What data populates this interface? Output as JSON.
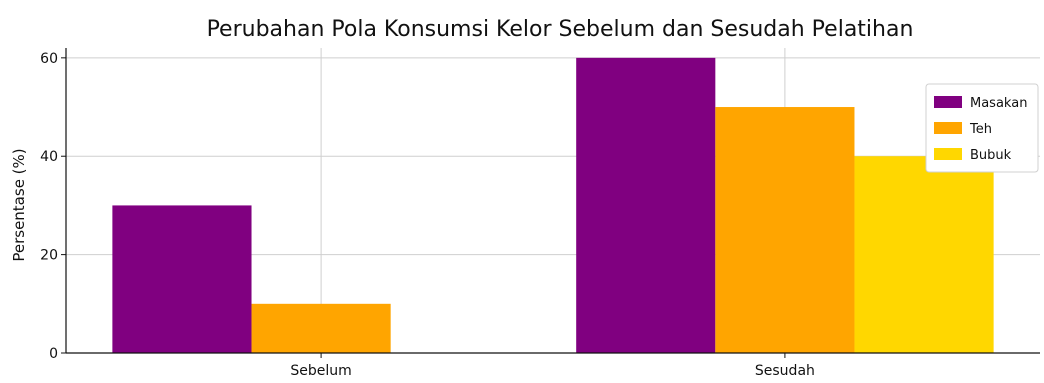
{
  "chart_data": {
    "type": "bar",
    "title": "Perubahan Pola Konsumsi Kelor Sebelum dan Sesudah Pelatihan",
    "xlabel": "",
    "ylabel": "Persentase (%)",
    "categories": [
      "Sebelum",
      "Sesudah"
    ],
    "series": [
      {
        "name": "Masakan",
        "values": [
          30,
          60
        ],
        "color": "#800080"
      },
      {
        "name": "Teh",
        "values": [
          10,
          50
        ],
        "color": "#FFA500"
      },
      {
        "name": "Bubuk",
        "values": [
          0,
          40
        ],
        "color": "#FFD700"
      }
    ],
    "ylim": [
      0,
      62
    ],
    "yticks": [
      0,
      20,
      40,
      60
    ],
    "grid": true,
    "legend_position": "top-right"
  }
}
